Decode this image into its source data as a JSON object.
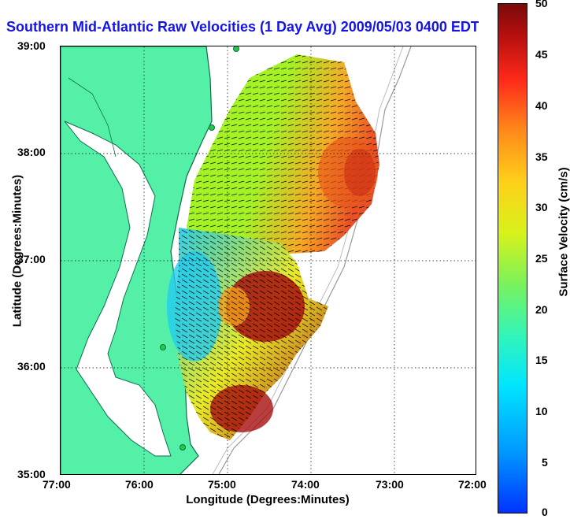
{
  "title": "Southern Mid-Atlantic Raw Velocities (1 Day Avg) 2009/05/03 0400 EDT",
  "colors": {
    "land": "#55f0a8",
    "land_edge": "#0d6e47",
    "title": "#1414e6"
  },
  "map": {
    "xlabel": "Longitude (Degrees:Minutes)",
    "ylabel": "Latitude (Degrees:Minutes)",
    "x_ticks": [
      "77:00",
      "76:00",
      "75:00",
      "74:00",
      "73:00",
      "72:00"
    ],
    "y_ticks": [
      "39:00",
      "38:00",
      "37:00",
      "36:00",
      "35:00"
    ],
    "lon_range": [
      -77,
      -72
    ],
    "lat_range": [
      35,
      39
    ],
    "grid": "dotted"
  },
  "colorbar": {
    "label": "Surface Velocity (cm/s)",
    "ticks": [
      "50",
      "45",
      "40",
      "35",
      "30",
      "25",
      "20",
      "15",
      "10",
      "5",
      "0"
    ],
    "range": [
      0,
      50
    ],
    "colormap": "jet"
  }
}
